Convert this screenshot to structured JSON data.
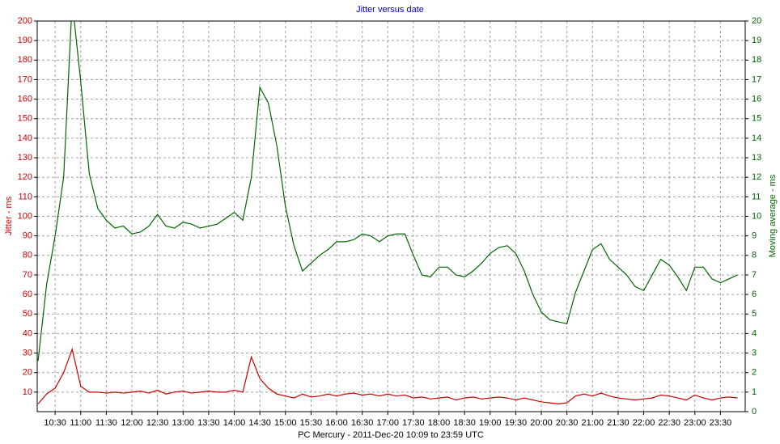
{
  "chart_data": {
    "type": "line",
    "title": "Jitter versus date",
    "xlabel": "PC Mercury  -  2011-Dec-20 10:09  to  23:59 UTC",
    "ylabel": "Jitter - ms",
    "y2label": "Moving average - ms",
    "grid": true,
    "xlim": [
      "10:09",
      "23:59"
    ],
    "xticks": [
      "10:30",
      "11:00",
      "11:30",
      "12:00",
      "12:30",
      "13:00",
      "13:30",
      "14:00",
      "14:30",
      "15:00",
      "15:30",
      "16:00",
      "16:30",
      "17:00",
      "17:30",
      "18:00",
      "18:30",
      "19:00",
      "19:30",
      "20:00",
      "20:30",
      "21:00",
      "21:30",
      "22:00",
      "22:30",
      "23:00",
      "23:30"
    ],
    "ylim": [
      0,
      200
    ],
    "yticks": [
      10,
      20,
      30,
      40,
      50,
      60,
      70,
      80,
      90,
      100,
      110,
      120,
      130,
      140,
      150,
      160,
      170,
      180,
      190,
      200
    ],
    "y2lim": [
      0,
      20
    ],
    "y2ticks": [
      0,
      1,
      2,
      3,
      4,
      5,
      6,
      7,
      8,
      9,
      10,
      11,
      12,
      13,
      14,
      15,
      16,
      17,
      18,
      19,
      20
    ],
    "x": [
      "10:10",
      "10:20",
      "10:30",
      "10:40",
      "10:50",
      "11:00",
      "11:10",
      "11:20",
      "11:30",
      "11:40",
      "11:50",
      "12:00",
      "12:10",
      "12:20",
      "12:30",
      "12:40",
      "12:50",
      "13:00",
      "13:10",
      "13:20",
      "13:30",
      "13:40",
      "13:50",
      "14:00",
      "14:10",
      "14:20",
      "14:30",
      "14:40",
      "14:50",
      "15:00",
      "15:10",
      "15:20",
      "15:30",
      "15:40",
      "15:50",
      "16:00",
      "16:10",
      "16:20",
      "16:30",
      "16:40",
      "16:50",
      "17:00",
      "17:10",
      "17:20",
      "17:30",
      "17:40",
      "17:50",
      "18:00",
      "18:10",
      "18:20",
      "18:30",
      "18:40",
      "18:50",
      "19:00",
      "19:10",
      "19:20",
      "19:30",
      "19:40",
      "19:50",
      "20:00",
      "20:10",
      "20:20",
      "20:30",
      "20:40",
      "20:50",
      "21:00",
      "21:10",
      "21:20",
      "21:30",
      "21:40",
      "21:50",
      "22:00",
      "22:10",
      "22:20",
      "22:30",
      "22:40",
      "22:50",
      "23:00",
      "23:10",
      "23:20",
      "23:30",
      "23:40",
      "23:50"
    ],
    "series": [
      {
        "name": "Jitter",
        "color": "#cc0000",
        "values": [
          4,
          9,
          12,
          20,
          32,
          13,
          10,
          10,
          9.5,
          10,
          9.5,
          10,
          10.5,
          9.5,
          11,
          9,
          10,
          10.5,
          9.5,
          10,
          10.5,
          10,
          10,
          11,
          10,
          28,
          17,
          12,
          9,
          8,
          7,
          9,
          7.5,
          8,
          9,
          8,
          9,
          9.5,
          8.5,
          9,
          8,
          9,
          8,
          8.5,
          7,
          7.5,
          6.5,
          7,
          7.5,
          6,
          7,
          7.5,
          6.5,
          7,
          7.5,
          7,
          6,
          7,
          6,
          5,
          4.5,
          4,
          4.5,
          8,
          9,
          8,
          9.5,
          8,
          7,
          6.5,
          6,
          6.5,
          7,
          8.5,
          8,
          7,
          6,
          8.5,
          7,
          6,
          7,
          7.5,
          7
        ]
      },
      {
        "name": "Moving average",
        "color": "#006600",
        "axis": "y2",
        "values": [
          2.6,
          6.5,
          9.0,
          12.0,
          21,
          16.9,
          12.2,
          10.4,
          9.8,
          9.4,
          9.5,
          9.1,
          9.2,
          9.5,
          10.1,
          9.5,
          9.4,
          9.7,
          9.6,
          9.4,
          9.5,
          9.6,
          9.9,
          10.2,
          9.8,
          12,
          16.6,
          15.8,
          13.6,
          10.5,
          8.5,
          7.2,
          7.6,
          8.0,
          8.3,
          8.7,
          8.7,
          8.8,
          9.1,
          9.0,
          8.7,
          9.0,
          9.1,
          9.1,
          8.0,
          7.0,
          6.9,
          7.4,
          7.4,
          7.0,
          6.9,
          7.2,
          7.6,
          8.1,
          8.4,
          8.5,
          8.1,
          7.2,
          6.0,
          5.1,
          4.7,
          4.6,
          4.5,
          6.1,
          7.2,
          8.3,
          8.6,
          7.8,
          7.4,
          7.0,
          6.4,
          6.2,
          7.0,
          7.8,
          7.5,
          6.9,
          6.2,
          7.4,
          7.4,
          6.8,
          6.6,
          6.8,
          7.0
        ]
      }
    ]
  }
}
